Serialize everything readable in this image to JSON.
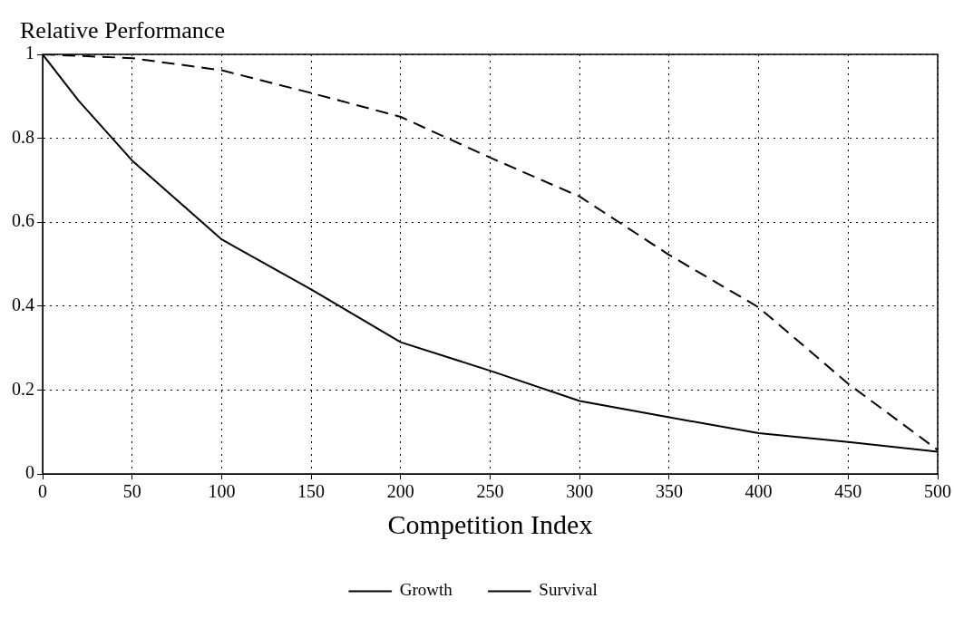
{
  "chart_data": {
    "type": "line",
    "ylabel": "Relative Performance",
    "xlabel": "Competition Index",
    "xlim": [
      0,
      500
    ],
    "xticks": [
      0,
      50,
      100,
      150,
      200,
      250,
      300,
      350,
      400,
      450,
      500
    ],
    "ylim": [
      0,
      1
    ],
    "yticks": [
      0,
      0.2,
      0.4,
      0.6,
      0.8,
      1
    ],
    "grid": true,
    "legend": "bottom",
    "series": [
      {
        "name": "Growth",
        "color": "#000000",
        "line_style": "solid",
        "x": [
          0,
          20,
          50,
          100,
          150,
          200,
          250,
          300,
          350,
          400,
          450,
          500
        ],
        "values": [
          1,
          0.89,
          0.747,
          0.559,
          0.44,
          0.314,
          0.246,
          0.174,
          0.135,
          0.097,
          0.076,
          0.053
        ]
      },
      {
        "name": "Survival",
        "color": "#000000",
        "line_style": "dashed",
        "x": [
          0,
          50,
          100,
          150,
          200,
          250,
          300,
          350,
          400,
          450,
          500
        ],
        "values": [
          1,
          0.991,
          0.962,
          0.908,
          0.851,
          0.754,
          0.661,
          0.522,
          0.397,
          0.215,
          0.057
        ]
      }
    ]
  }
}
